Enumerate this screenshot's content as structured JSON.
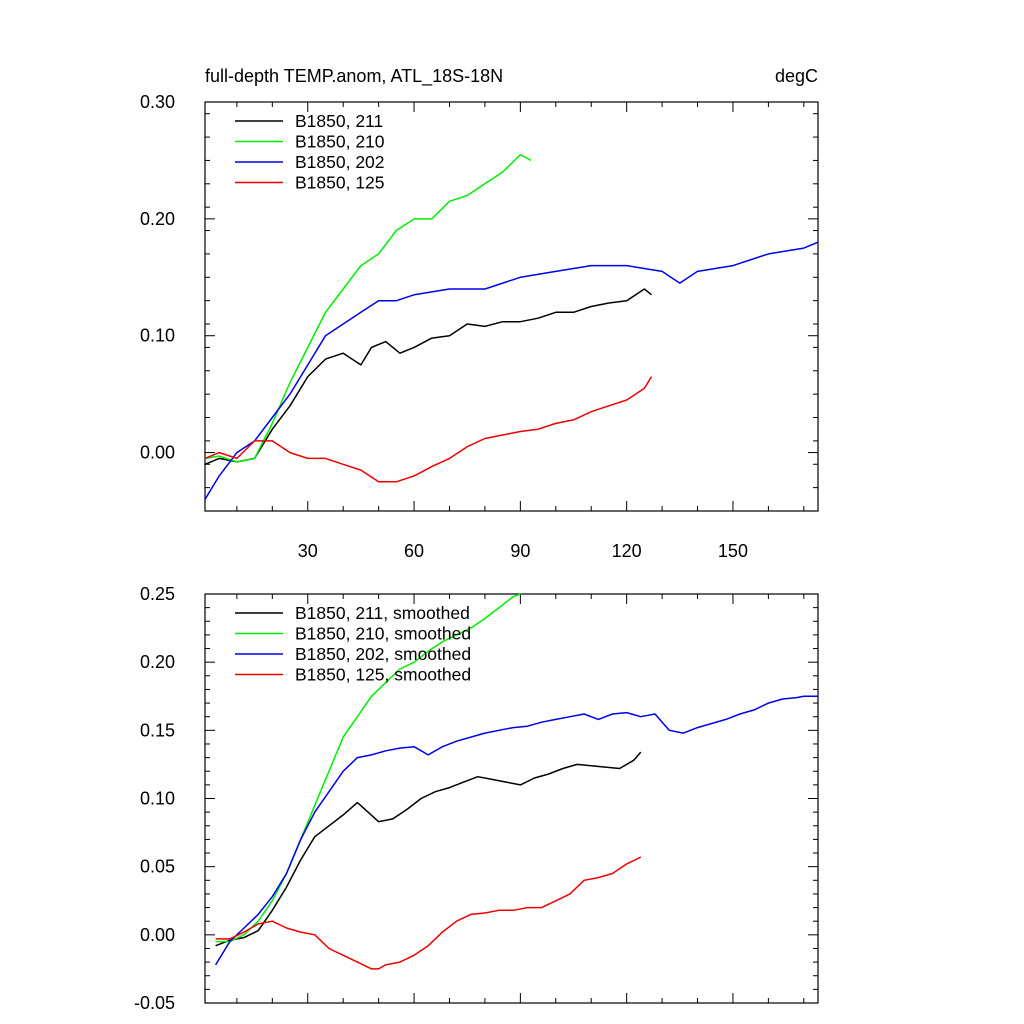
{
  "chart_data": [
    {
      "type": "line",
      "title": "full-depth TEMP.anom, ATL_18S-18N",
      "units": "degC",
      "xlim": [
        1,
        174
      ],
      "ylim": [
        -0.05,
        0.3
      ],
      "xticks": [
        30,
        60,
        90,
        120,
        150
      ],
      "xticklabels": [
        "30",
        "60",
        "90",
        "120",
        "150"
      ],
      "yticks": [
        0.0,
        0.1,
        0.2,
        0.3
      ],
      "yticklabels": [
        "0.00",
        "0.10",
        "0.20",
        "0.30"
      ],
      "legend": "top-left",
      "series": [
        {
          "name": "B1850, 211",
          "color": "#000000",
          "x": [
            1,
            5,
            10,
            15,
            20,
            25,
            30,
            35,
            40,
            45,
            48,
            52,
            56,
            60,
            65,
            70,
            75,
            80,
            85,
            90,
            95,
            100,
            105,
            110,
            115,
            120,
            125,
            127
          ],
          "y": [
            -0.01,
            -0.005,
            -0.008,
            -0.005,
            0.02,
            0.04,
            0.065,
            0.08,
            0.085,
            0.075,
            0.09,
            0.095,
            0.085,
            0.09,
            0.098,
            0.1,
            0.11,
            0.108,
            0.112,
            0.112,
            0.115,
            0.12,
            0.12,
            0.125,
            0.128,
            0.13,
            0.14,
            0.135
          ]
        },
        {
          "name": "B1850, 210",
          "color": "#00ee00",
          "x": [
            1,
            5,
            10,
            15,
            20,
            25,
            30,
            35,
            40,
            45,
            50,
            55,
            60,
            65,
            70,
            75,
            80,
            85,
            90,
            93
          ],
          "y": [
            -0.005,
            -0.003,
            -0.008,
            -0.005,
            0.025,
            0.06,
            0.09,
            0.12,
            0.14,
            0.16,
            0.17,
            0.19,
            0.2,
            0.2,
            0.215,
            0.22,
            0.23,
            0.24,
            0.255,
            0.25
          ]
        },
        {
          "name": "B1850, 202",
          "color": "#0000ee",
          "x": [
            1,
            5,
            10,
            15,
            20,
            25,
            30,
            35,
            40,
            45,
            50,
            55,
            60,
            70,
            80,
            90,
            100,
            110,
            120,
            130,
            135,
            140,
            150,
            160,
            170,
            174
          ],
          "y": [
            -0.04,
            -0.02,
            0.0,
            0.01,
            0.03,
            0.05,
            0.075,
            0.1,
            0.11,
            0.12,
            0.13,
            0.13,
            0.135,
            0.14,
            0.14,
            0.15,
            0.155,
            0.16,
            0.16,
            0.155,
            0.145,
            0.155,
            0.16,
            0.17,
            0.175,
            0.18
          ]
        },
        {
          "name": "B1850, 125",
          "color": "#ee0000",
          "x": [
            1,
            5,
            10,
            15,
            20,
            25,
            30,
            35,
            40,
            45,
            50,
            55,
            60,
            65,
            70,
            75,
            80,
            85,
            90,
            95,
            100,
            105,
            110,
            115,
            120,
            125,
            127
          ],
          "y": [
            -0.005,
            0.0,
            -0.005,
            0.01,
            0.01,
            0.0,
            -0.005,
            -0.005,
            -0.01,
            -0.015,
            -0.025,
            -0.025,
            -0.02,
            -0.012,
            -0.005,
            0.005,
            0.012,
            0.015,
            0.018,
            0.02,
            0.025,
            0.028,
            0.035,
            0.04,
            0.045,
            0.055,
            0.065
          ]
        }
      ]
    },
    {
      "type": "line",
      "xlim": [
        1,
        174
      ],
      "ylim": [
        -0.05,
        0.25
      ],
      "xticks": [
        30,
        60,
        90,
        120,
        150
      ],
      "yticks": [
        -0.05,
        0.0,
        0.05,
        0.1,
        0.15,
        0.2,
        0.25
      ],
      "yticklabels": [
        "-0.05",
        "0.00",
        "0.05",
        "0.10",
        "0.15",
        "0.20",
        "0.25"
      ],
      "legend": "top-left",
      "series": [
        {
          "name": "B1850, 211, smoothed",
          "color": "#000000",
          "x": [
            4,
            8,
            12,
            16,
            20,
            24,
            28,
            32,
            36,
            40,
            44,
            47,
            50,
            54,
            58,
            62,
            66,
            70,
            74,
            78,
            82,
            86,
            90,
            94,
            98,
            102,
            106,
            110,
            114,
            118,
            122,
            124
          ],
          "y": [
            -0.008,
            -0.004,
            -0.002,
            0.003,
            0.018,
            0.035,
            0.055,
            0.072,
            0.08,
            0.088,
            0.097,
            0.09,
            0.083,
            0.085,
            0.092,
            0.1,
            0.105,
            0.108,
            0.112,
            0.116,
            0.114,
            0.112,
            0.11,
            0.115,
            0.118,
            0.122,
            0.125,
            0.124,
            0.123,
            0.122,
            0.128,
            0.134
          ]
        },
        {
          "name": "B1850, 210, smoothed",
          "color": "#00ee00",
          "x": [
            4,
            8,
            12,
            16,
            20,
            24,
            28,
            32,
            36,
            40,
            44,
            48,
            52,
            56,
            60,
            64,
            68,
            72,
            76,
            80,
            84,
            88,
            90
          ],
          "y": [
            -0.005,
            -0.005,
            0.0,
            0.01,
            0.025,
            0.045,
            0.07,
            0.095,
            0.12,
            0.145,
            0.16,
            0.175,
            0.185,
            0.195,
            0.2,
            0.208,
            0.215,
            0.22,
            0.225,
            0.232,
            0.24,
            0.248,
            0.25
          ]
        },
        {
          "name": "B1850, 202, smoothed",
          "color": "#0000ee",
          "x": [
            4,
            8,
            12,
            16,
            20,
            24,
            28,
            32,
            36,
            40,
            44,
            48,
            52,
            56,
            60,
            64,
            68,
            72,
            76,
            80,
            84,
            88,
            92,
            96,
            100,
            104,
            108,
            112,
            116,
            120,
            124,
            128,
            132,
            136,
            140,
            144,
            148,
            152,
            156,
            160,
            164,
            168,
            170,
            174
          ],
          "y": [
            -0.022,
            -0.005,
            0.005,
            0.015,
            0.028,
            0.045,
            0.07,
            0.09,
            0.105,
            0.12,
            0.13,
            0.132,
            0.135,
            0.137,
            0.138,
            0.132,
            0.138,
            0.142,
            0.145,
            0.148,
            0.15,
            0.152,
            0.153,
            0.156,
            0.158,
            0.16,
            0.162,
            0.158,
            0.162,
            0.163,
            0.16,
            0.162,
            0.15,
            0.148,
            0.152,
            0.155,
            0.158,
            0.162,
            0.165,
            0.17,
            0.173,
            0.174,
            0.175,
            0.175
          ]
        },
        {
          "name": "B1850, 125, smoothed",
          "color": "#ee0000",
          "x": [
            4,
            8,
            12,
            16,
            20,
            24,
            28,
            32,
            36,
            40,
            44,
            48,
            50,
            52,
            56,
            60,
            64,
            68,
            72,
            76,
            80,
            84,
            88,
            92,
            96,
            100,
            104,
            108,
            112,
            116,
            120,
            124
          ],
          "y": [
            -0.003,
            -0.003,
            0.002,
            0.008,
            0.01,
            0.005,
            0.002,
            0.0,
            -0.01,
            -0.015,
            -0.02,
            -0.025,
            -0.025,
            -0.022,
            -0.02,
            -0.015,
            -0.008,
            0.002,
            0.01,
            0.015,
            0.016,
            0.018,
            0.018,
            0.02,
            0.02,
            0.025,
            0.03,
            0.04,
            0.042,
            0.045,
            0.052,
            0.057
          ]
        }
      ]
    }
  ]
}
